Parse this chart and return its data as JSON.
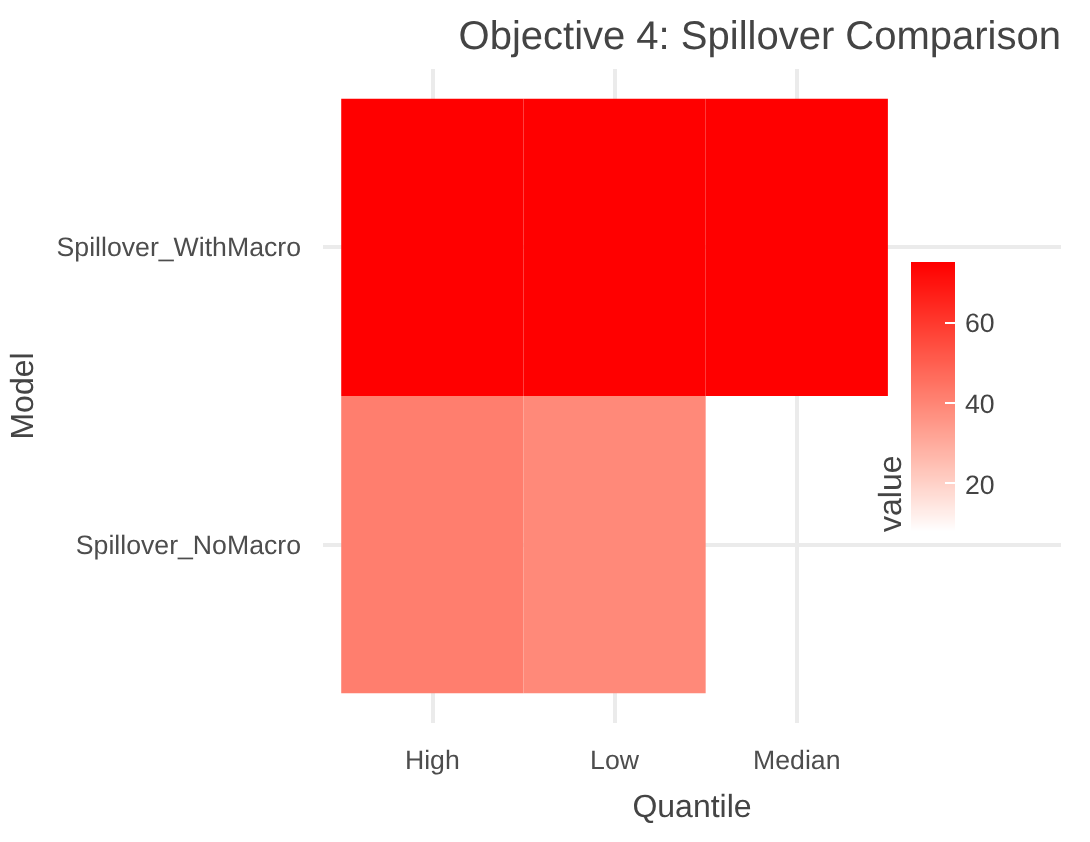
{
  "chart_data": {
    "type": "heatmap",
    "title": "Objective 4: Spillover Comparison",
    "xlabel": "Quantile",
    "ylabel": "Model",
    "legend_title": "value",
    "categories": [
      "High",
      "Low",
      "Median"
    ],
    "y_categories": [
      "Spillover_WithMacro",
      "Spillover_NoMacro"
    ],
    "cells": [
      [
        75,
        75,
        75
      ],
      [
        42,
        39,
        null
      ]
    ],
    "clim": [
      8,
      75
    ],
    "cticks": [
      20,
      40,
      60
    ],
    "grid": true
  }
}
